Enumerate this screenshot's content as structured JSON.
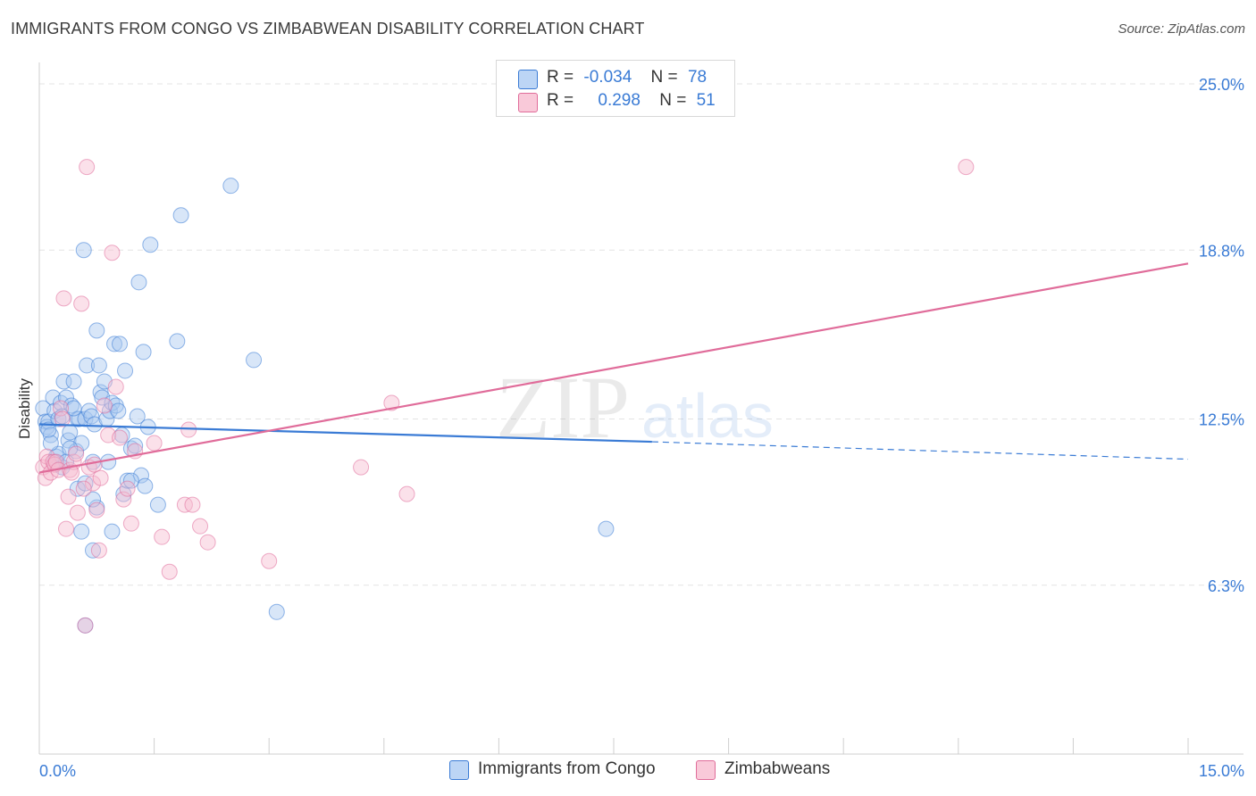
{
  "header": {
    "title": "IMMIGRANTS FROM CONGO VS ZIMBABWEAN DISABILITY CORRELATION CHART",
    "source": "Source: ZipAtlas.com"
  },
  "legend": {
    "rows": [
      {
        "r_label": "R =",
        "r_value": "-0.034",
        "n_label": "N =",
        "n_value": "78"
      },
      {
        "r_label": "R =",
        "r_value": "0.298",
        "n_label": "N =",
        "n_value": "51"
      }
    ]
  },
  "watermark": {
    "zip": "ZIP",
    "atlas": "atlas"
  },
  "colors": {
    "blue": "#3a7bd5",
    "blue_fill": "#a8c8f0",
    "pink": "#e06c9a",
    "pink_fill": "#f6bcd0",
    "grid": "#e3e3e3",
    "tick_label": "#3a7bd5"
  },
  "chart_data": {
    "type": "scatter",
    "title": "IMMIGRANTS FROM CONGO VS ZIMBABWEAN DISABILITY CORRELATION CHART",
    "xlabel": "",
    "ylabel": "Disability",
    "xlim": [
      0,
      15
    ],
    "ylim": [
      0,
      25.8
    ],
    "x_tick_labels": [
      "0.0%",
      "15.0%"
    ],
    "y_ticks": [
      6.3,
      12.5,
      18.8,
      25.0
    ],
    "y_tick_labels": [
      "6.3%",
      "12.5%",
      "18.8%",
      "25.0%"
    ],
    "grid": "horizontal dashed",
    "legend_position": "top-center",
    "series": [
      {
        "name": "Immigrants from Congo",
        "color": "#3a7bd5",
        "r": -0.034,
        "n": 78,
        "trend": {
          "x": [
            0,
            8.0
          ],
          "y": [
            12.3,
            11.65
          ],
          "dashed_to": [
            15.0,
            11.0
          ]
        },
        "points": [
          [
            0.05,
            12.9
          ],
          [
            0.08,
            12.4
          ],
          [
            0.1,
            12.2
          ],
          [
            0.12,
            12.4
          ],
          [
            0.15,
            11.9
          ],
          [
            0.18,
            13.3
          ],
          [
            0.2,
            12.8
          ],
          [
            0.22,
            11.1
          ],
          [
            0.25,
            12.5
          ],
          [
            0.28,
            13.1
          ],
          [
            0.3,
            12.6
          ],
          [
            0.32,
            13.9
          ],
          [
            0.35,
            13.3
          ],
          [
            0.38,
            11.7
          ],
          [
            0.4,
            12.0
          ],
          [
            0.42,
            13.0
          ],
          [
            0.45,
            13.9
          ],
          [
            0.48,
            11.3
          ],
          [
            0.5,
            12.5
          ],
          [
            0.52,
            12.5
          ],
          [
            0.55,
            11.6
          ],
          [
            0.58,
            18.8
          ],
          [
            0.6,
            12.5
          ],
          [
            0.62,
            14.5
          ],
          [
            0.65,
            12.8
          ],
          [
            0.68,
            12.6
          ],
          [
            0.7,
            10.9
          ],
          [
            0.72,
            12.3
          ],
          [
            0.75,
            15.8
          ],
          [
            0.78,
            14.5
          ],
          [
            0.8,
            13.5
          ],
          [
            0.82,
            13.3
          ],
          [
            0.85,
            13.9
          ],
          [
            0.88,
            12.5
          ],
          [
            0.9,
            10.9
          ],
          [
            0.92,
            12.8
          ],
          [
            0.95,
            13.1
          ],
          [
            0.98,
            15.3
          ],
          [
            1.0,
            13.0
          ],
          [
            1.03,
            12.8
          ],
          [
            1.05,
            15.3
          ],
          [
            1.08,
            11.9
          ],
          [
            1.1,
            9.7
          ],
          [
            1.12,
            14.3
          ],
          [
            1.15,
            10.2
          ],
          [
            1.2,
            11.4
          ],
          [
            1.25,
            11.5
          ],
          [
            1.28,
            12.6
          ],
          [
            1.3,
            17.6
          ],
          [
            1.33,
            10.4
          ],
          [
            1.36,
            15.0
          ],
          [
            1.38,
            10.0
          ],
          [
            1.42,
            12.2
          ],
          [
            1.45,
            19.0
          ],
          [
            1.55,
            9.3
          ],
          [
            1.8,
            15.4
          ],
          [
            1.85,
            20.1
          ],
          [
            2.5,
            21.2
          ],
          [
            2.8,
            14.7
          ],
          [
            3.1,
            5.3
          ],
          [
            0.6,
            4.8
          ],
          [
            0.55,
            8.3
          ],
          [
            0.7,
            7.6
          ],
          [
            0.95,
            8.3
          ],
          [
            0.75,
            9.2
          ],
          [
            0.7,
            9.5
          ],
          [
            0.5,
            9.9
          ],
          [
            0.6,
            10.1
          ],
          [
            0.3,
            10.7
          ],
          [
            0.2,
            10.9
          ],
          [
            0.25,
            11.2
          ],
          [
            0.4,
            11.4
          ],
          [
            0.15,
            11.6
          ],
          [
            0.12,
            12.1
          ],
          [
            0.35,
            10.9
          ],
          [
            0.45,
            12.9
          ],
          [
            1.2,
            10.2
          ],
          [
            7.4,
            8.4
          ]
        ]
      },
      {
        "name": "Zimbabweans",
        "color": "#e06c9a",
        "r": 0.298,
        "n": 51,
        "trend": {
          "x": [
            0,
            15.0
          ],
          "y": [
            10.5,
            18.3
          ]
        },
        "points": [
          [
            0.05,
            10.7
          ],
          [
            0.08,
            10.3
          ],
          [
            0.1,
            11.1
          ],
          [
            0.12,
            10.9
          ],
          [
            0.15,
            10.5
          ],
          [
            0.18,
            10.9
          ],
          [
            0.2,
            10.8
          ],
          [
            0.22,
            10.9
          ],
          [
            0.25,
            10.6
          ],
          [
            0.28,
            12.9
          ],
          [
            0.3,
            12.5
          ],
          [
            0.32,
            17.0
          ],
          [
            0.35,
            8.4
          ],
          [
            0.38,
            9.6
          ],
          [
            0.4,
            10.6
          ],
          [
            0.45,
            10.9
          ],
          [
            0.5,
            9.0
          ],
          [
            0.55,
            16.8
          ],
          [
            0.6,
            4.8
          ],
          [
            0.62,
            21.9
          ],
          [
            0.65,
            10.7
          ],
          [
            0.7,
            10.1
          ],
          [
            0.72,
            10.8
          ],
          [
            0.75,
            9.1
          ],
          [
            0.78,
            7.6
          ],
          [
            0.8,
            10.3
          ],
          [
            0.85,
            13.0
          ],
          [
            0.9,
            11.9
          ],
          [
            0.95,
            18.7
          ],
          [
            1.0,
            13.7
          ],
          [
            1.05,
            11.8
          ],
          [
            1.1,
            9.5
          ],
          [
            1.15,
            9.9
          ],
          [
            1.2,
            8.6
          ],
          [
            1.25,
            11.3
          ],
          [
            1.5,
            11.6
          ],
          [
            1.6,
            8.1
          ],
          [
            1.7,
            6.8
          ],
          [
            1.9,
            9.3
          ],
          [
            1.95,
            12.1
          ],
          [
            2.0,
            9.3
          ],
          [
            2.1,
            8.5
          ],
          [
            2.2,
            7.9
          ],
          [
            3.0,
            7.2
          ],
          [
            4.2,
            10.7
          ],
          [
            4.6,
            13.1
          ],
          [
            4.8,
            9.7
          ],
          [
            12.1,
            21.9
          ],
          [
            0.42,
            10.5
          ],
          [
            0.48,
            11.2
          ],
          [
            0.58,
            9.9
          ]
        ]
      }
    ]
  },
  "bottom_legend": {
    "items": [
      {
        "label": "Immigrants from Congo"
      },
      {
        "label": "Zimbabweans"
      }
    ]
  }
}
